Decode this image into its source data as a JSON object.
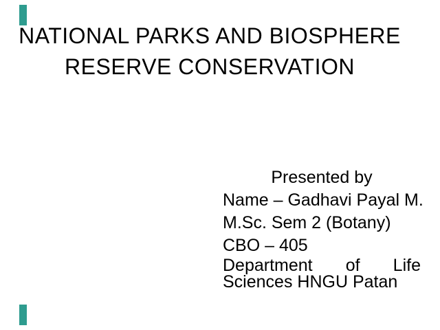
{
  "slide": {
    "title_line1": "NATIONAL PARKS AND BIOSPHERE",
    "title_line2": "RESERVE CONSERVATION",
    "body": {
      "presented_by": "Presented by",
      "presenter_name": "Name – Gadhavi Payal M.",
      "course": "M.Sc. Sem 2 (Botany)",
      "course_code": "CBO – 405",
      "department_wrap_line1": "Department of Life",
      "department_wrap_line2": "Sciences HNGU Patan"
    },
    "colors": {
      "accent": "#2E9C8F",
      "text": "#000000",
      "background": "#FFFFFF"
    }
  }
}
